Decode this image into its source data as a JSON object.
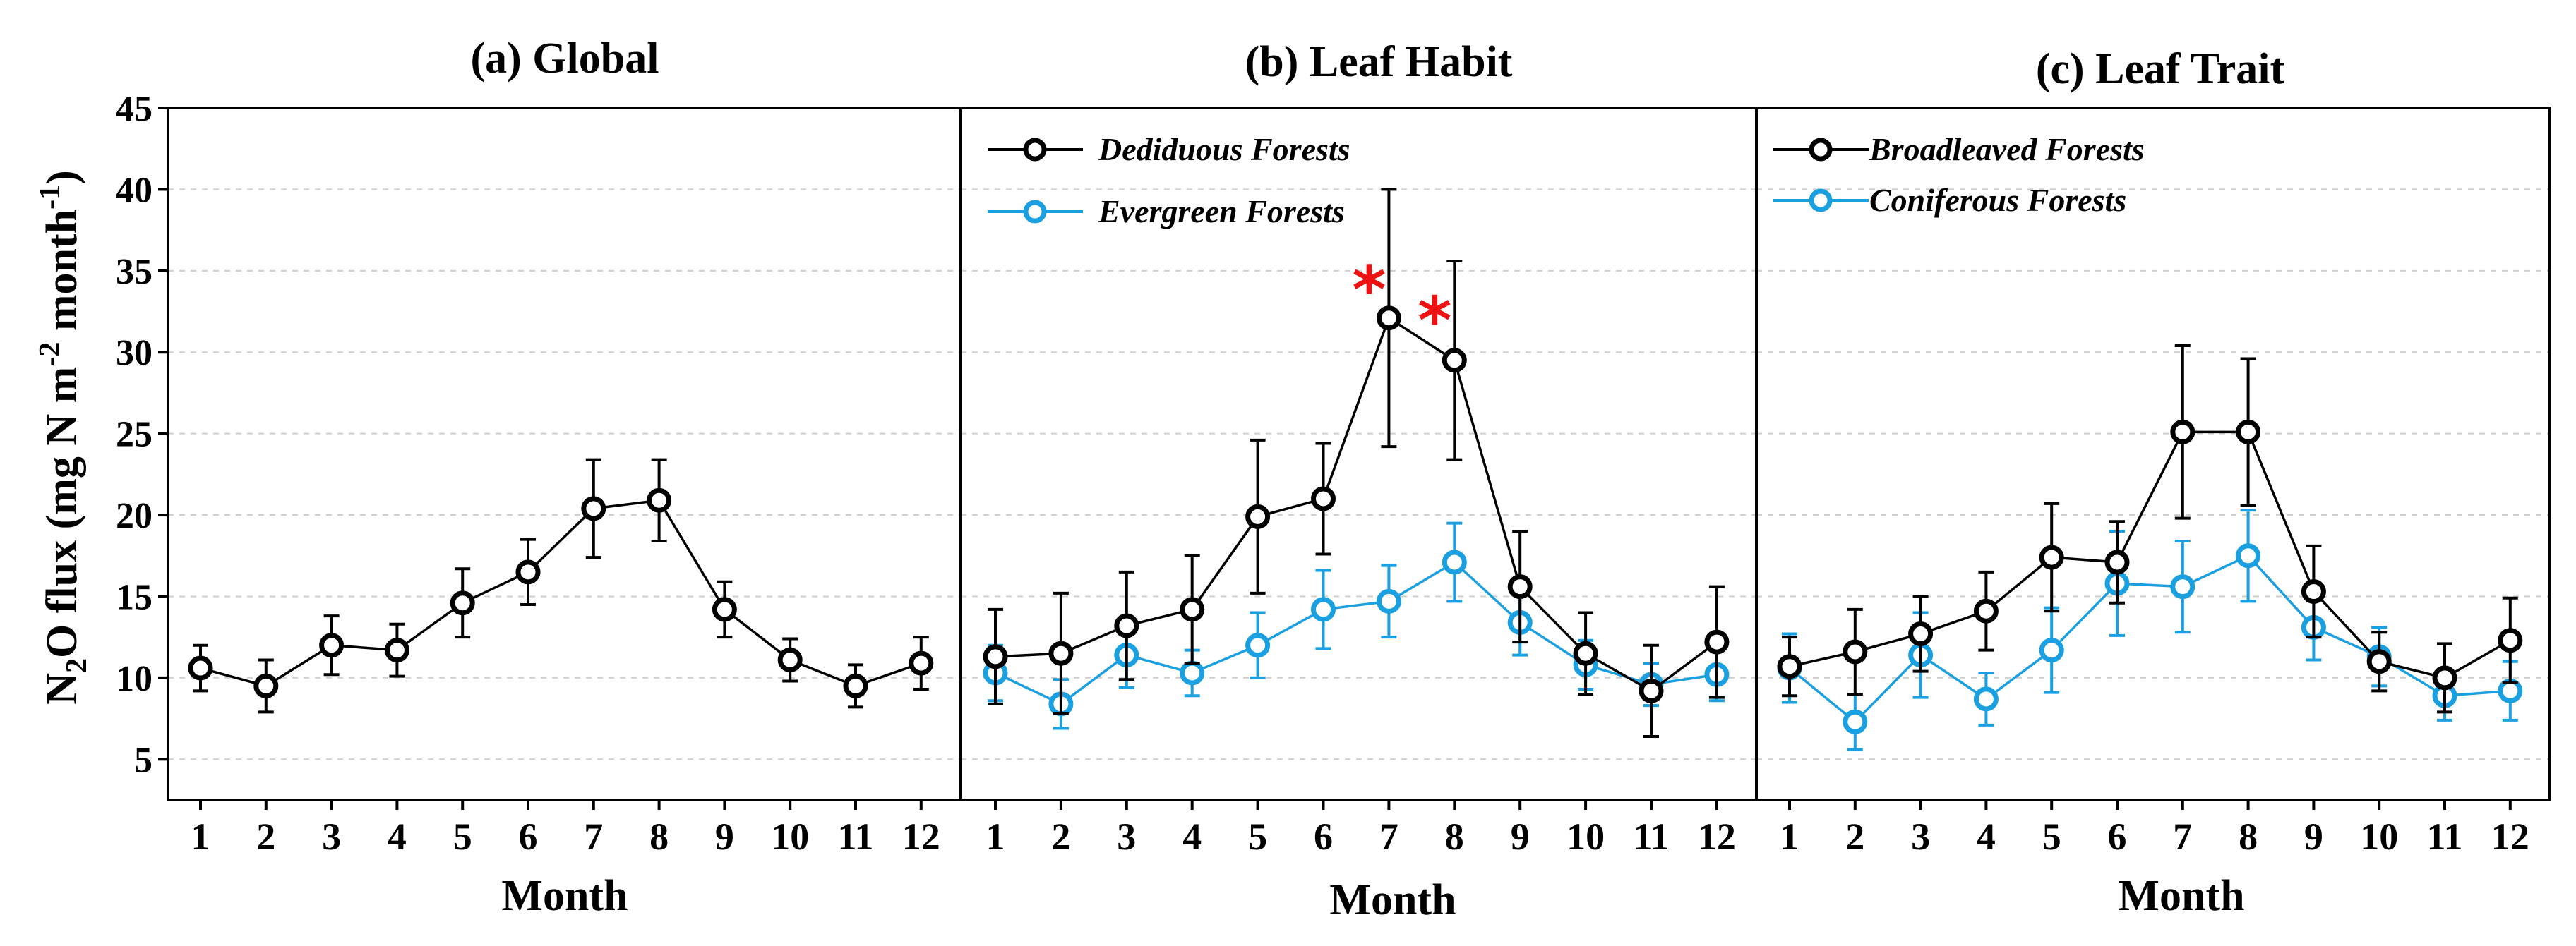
{
  "axis": {
    "ylabel_main": "N",
    "ylabel_sub": "2",
    "ylabel_mid": "O flux (mg N m",
    "ylabel_sup1": "-2",
    "ylabel_mid2": " month",
    "ylabel_sup2": "-1",
    "ylabel_end": ")"
  },
  "chart_data": [
    {
      "type": "line",
      "title": "(a) Global",
      "xlabel": "Month",
      "ylabel": "N2O flux (mg N m-2 month-1)",
      "ylim": [
        2.5,
        45
      ],
      "yticks": [
        5,
        10,
        15,
        20,
        25,
        30,
        35,
        40,
        45
      ],
      "categories": [
        "1",
        "2",
        "3",
        "4",
        "5",
        "6",
        "7",
        "8",
        "9",
        "10",
        "11",
        "12"
      ],
      "grid": true,
      "series": [
        {
          "name": "Global",
          "color": "#000000",
          "values": [
            10.6,
            9.5,
            12.0,
            11.7,
            14.6,
            16.5,
            20.4,
            20.9,
            14.2,
            11.1,
            9.5,
            10.9
          ],
          "err": [
            1.4,
            1.6,
            1.8,
            1.6,
            2.1,
            2.0,
            3.0,
            2.5,
            1.7,
            1.3,
            1.3,
            1.6
          ]
        }
      ],
      "annotations": []
    },
    {
      "type": "line",
      "title": "(b) Leaf Habit",
      "xlabel": "Month",
      "ylim": [
        2.5,
        45
      ],
      "categories": [
        "1",
        "2",
        "3",
        "4",
        "5",
        "6",
        "7",
        "8",
        "9",
        "10",
        "11",
        "12"
      ],
      "grid": true,
      "legend": "top-left",
      "series": [
        {
          "name": "Dediduous Forests",
          "color": "#000000",
          "values": [
            11.3,
            11.5,
            13.2,
            14.2,
            19.9,
            21.0,
            32.1,
            29.5,
            15.6,
            11.5,
            9.2,
            12.2
          ],
          "err": [
            2.9,
            3.7,
            3.3,
            3.3,
            4.7,
            3.4,
            7.9,
            6.1,
            3.4,
            2.5,
            2.8,
            3.4
          ]
        },
        {
          "name": "Evergreen Forests",
          "color": "#1a9fe0",
          "values": [
            10.3,
            8.4,
            11.4,
            10.3,
            12.0,
            14.2,
            14.7,
            17.1,
            13.4,
            10.8,
            9.6,
            10.2
          ],
          "err": [
            1.7,
            1.5,
            2.0,
            1.4,
            2.0,
            2.4,
            2.2,
            2.4,
            2.0,
            1.5,
            1.3,
            1.6
          ]
        }
      ],
      "annotations": [
        {
          "text": "*",
          "x": "7",
          "y": 34.2
        },
        {
          "text": "*",
          "x": "8",
          "y": 32.3
        }
      ]
    },
    {
      "type": "line",
      "title": "(c) Leaf Trait",
      "xlabel": "Month",
      "ylim": [
        2.5,
        45
      ],
      "categories": [
        "1",
        "2",
        "3",
        "4",
        "5",
        "6",
        "7",
        "8",
        "9",
        "10",
        "11",
        "12"
      ],
      "grid": true,
      "legend": "top-left",
      "series": [
        {
          "name": "Broadleaved Forests",
          "color": "#000000",
          "values": [
            10.7,
            11.6,
            12.7,
            14.1,
            17.4,
            17.1,
            25.1,
            25.1,
            15.3,
            11.0,
            10.0,
            12.3
          ],
          "err": [
            1.8,
            2.6,
            2.3,
            2.4,
            3.3,
            2.5,
            5.3,
            4.5,
            2.8,
            1.8,
            2.1,
            2.6
          ]
        },
        {
          "name": "Coniferous Forests",
          "color": "#1a9fe0",
          "values": [
            10.6,
            7.3,
            11.4,
            8.7,
            11.7,
            15.8,
            15.6,
            17.5,
            13.1,
            11.3,
            8.9,
            9.2
          ],
          "err": [
            2.1,
            1.7,
            2.6,
            1.6,
            2.6,
            3.2,
            2.8,
            2.8,
            2.0,
            1.8,
            1.5,
            1.8
          ]
        }
      ],
      "annotations": []
    }
  ]
}
